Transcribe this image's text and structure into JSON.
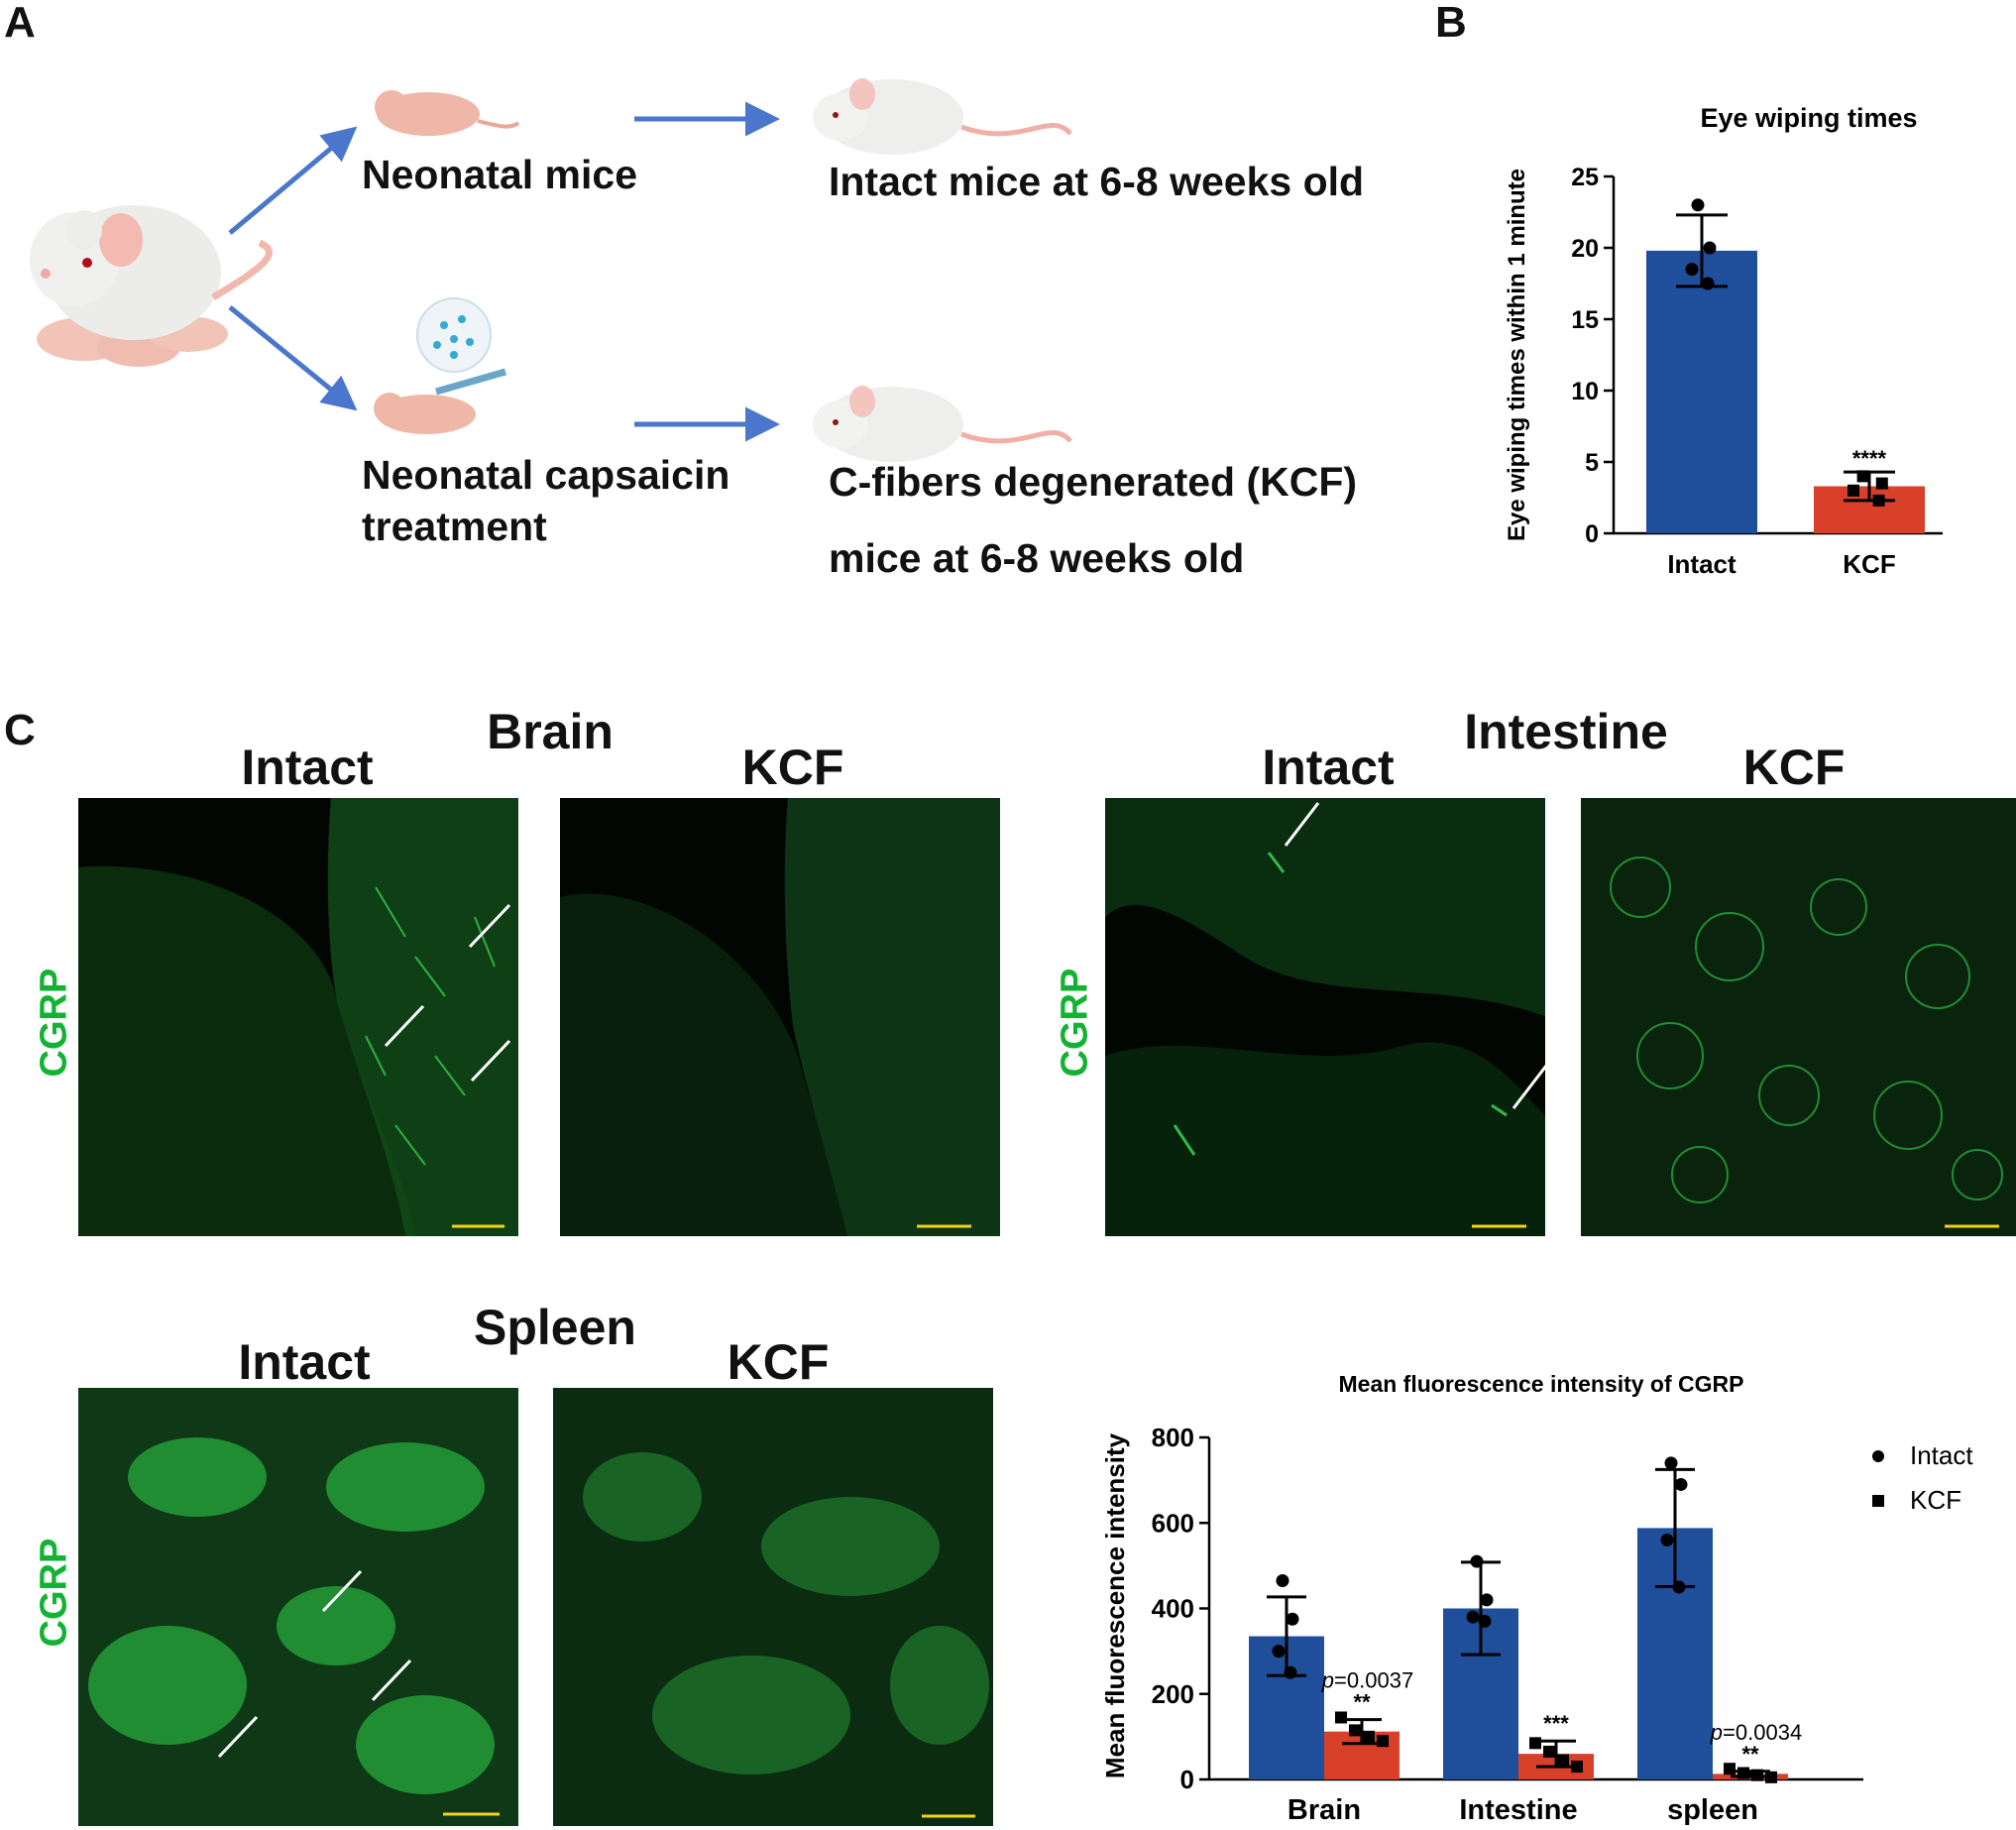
{
  "panel_letters": {
    "a": "A",
    "b": "B",
    "c": "C"
  },
  "panel_a": {
    "neonatal": "Neonatal mice",
    "intact_adult": "Intact mice at 6-8 weeks old",
    "capsaicin_line1": "Neonatal capsaicin",
    "capsaicin_line2": "treatment",
    "kcf_line1": "C-fibers degenerated (KCF)",
    "kcf_line2": "mice at 6-8 weeks old"
  },
  "panel_c": {
    "brain": "Brain",
    "intestine": "Intestine",
    "spleen": "Spleen",
    "intact": "Intact",
    "kcf": "KCF",
    "cgrp": "CGRP",
    "colors": {
      "fluorescence": "#2fd24a",
      "scale_bar": "#f2d21a",
      "cgrp_label": "#12b332"
    }
  },
  "chart_data": [
    {
      "type": "bar",
      "title": "Eye wiping times",
      "ylabel": "Eye wiping times within 1 minute",
      "xlabel": "",
      "categories": [
        "Intact",
        "KCF"
      ],
      "values": [
        19.8,
        3.3
      ],
      "error": [
        2.5,
        1.0
      ],
      "points": [
        [
          23,
          20,
          18.5,
          17.5
        ],
        [
          4,
          3.5,
          3,
          2.3
        ]
      ],
      "point_markers": [
        "circle",
        "square"
      ],
      "colors": [
        "#1f4e9a",
        "#d9402a"
      ],
      "annotations": [
        "",
        "****"
      ],
      "ylim": [
        0,
        25
      ],
      "yticks": [
        0,
        5,
        10,
        15,
        20,
        25
      ]
    },
    {
      "type": "bar",
      "title": "Mean fluorescence intensity  of CGRP",
      "ylabel": "Mean fluorescence intensity",
      "xlabel": "",
      "categories": [
        "Brain",
        "Intestine",
        "spleen"
      ],
      "series": [
        {
          "name": "Intact",
          "values": [
            335,
            400,
            588
          ],
          "error": [
            92,
            108,
            137
          ],
          "points": [
            [
              465,
              375,
              300,
              250
            ],
            [
              510,
              420,
              380,
              370
            ],
            [
              740,
              690,
              560,
              450
            ]
          ],
          "color": "#1f4e9a",
          "marker": "circle"
        },
        {
          "name": "KCF",
          "values": [
            112,
            60,
            13
          ],
          "error": [
            28,
            30,
            6
          ],
          "points": [
            [
              145,
              115,
              100,
              90
            ],
            [
              85,
              65,
              45,
              30
            ],
            [
              25,
              15,
              10,
              5
            ]
          ],
          "color": "#d9402a",
          "marker": "square"
        }
      ],
      "annotations": [
        {
          "category": "Brain",
          "pvalue": "=0.0037",
          "stars": "**"
        },
        {
          "category": "Intestine",
          "pvalue": "",
          "stars": "***"
        },
        {
          "category": "spleen",
          "pvalue": "=0.0034",
          "stars": "**"
        }
      ],
      "pvalue_prefix": "p",
      "ylim": [
        0,
        800
      ],
      "yticks": [
        0,
        200,
        400,
        600,
        800
      ],
      "legend": "top-right"
    }
  ]
}
